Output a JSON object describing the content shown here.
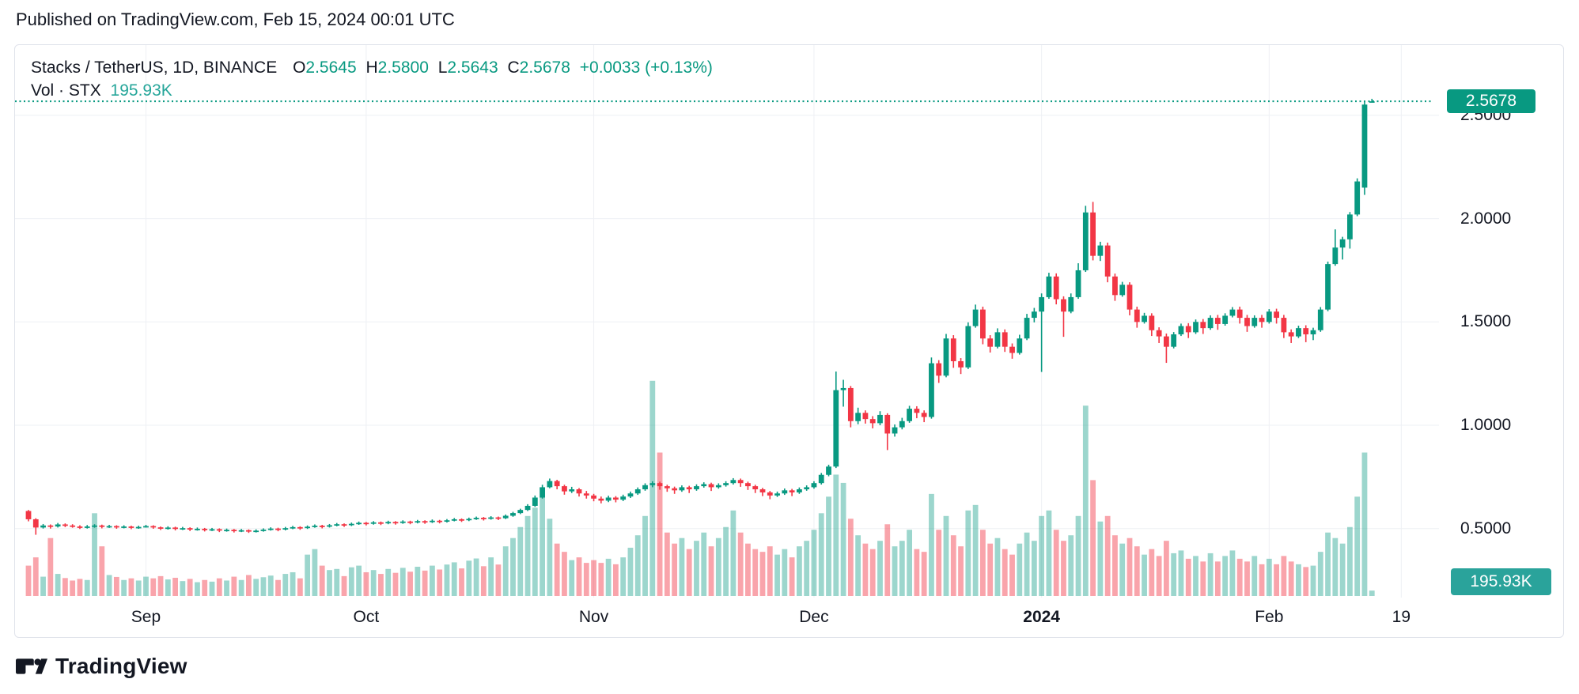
{
  "header": {
    "published_line": "Published on TradingView.com, Feb 15, 2024 00:01 UTC"
  },
  "legend": {
    "symbol_line": {
      "symbol": "Stacks / TetherUS, 1D, BINANCE",
      "o_label": "O",
      "o_value": "2.5645",
      "h_label": "H",
      "h_value": "2.5800",
      "l_label": "L",
      "l_value": "2.5643",
      "c_label": "C",
      "c_value": "2.5678",
      "change": "+0.0033 (+0.13%)"
    },
    "volume_line": {
      "label": "Vol · STX",
      "value": "195.93K"
    }
  },
  "price_axis": {
    "labels": [
      {
        "text": "2.5000",
        "price": 2.5
      },
      {
        "text": "2.0000",
        "price": 2.0
      },
      {
        "text": "1.5000",
        "price": 1.5
      },
      {
        "text": "1.0000",
        "price": 1.0
      },
      {
        "text": "0.5000",
        "price": 0.5
      }
    ],
    "price_badge": "2.5678",
    "volume_badge": "195.93K"
  },
  "time_axis": {
    "labels": [
      {
        "text": "Sep",
        "day_index": 16,
        "bold": false
      },
      {
        "text": "Oct",
        "day_index": 46,
        "bold": false
      },
      {
        "text": "Nov",
        "day_index": 77,
        "bold": false
      },
      {
        "text": "Dec",
        "day_index": 107,
        "bold": false
      },
      {
        "text": "2024",
        "day_index": 138,
        "bold": true
      },
      {
        "text": "Feb",
        "day_index": 169,
        "bold": false
      },
      {
        "text": "19",
        "day_index": 187,
        "bold": false
      }
    ]
  },
  "footer": {
    "brand": "TradingView",
    "logo": "tradingview-tv-mark"
  },
  "colors": {
    "up": "#089981",
    "down": "#f23645",
    "vol_up": "rgba(8,153,129,0.40)",
    "vol_down": "rgba(242,54,69,0.45)",
    "grid": "#eef0f4",
    "text": "#131722",
    "price_line": "#089981",
    "price_badge_bg": "#089981",
    "volume_badge_bg": "#2aa39b",
    "card_border": "#e0e3eb"
  },
  "chart_data": {
    "type": "candlestick",
    "title": "Stacks / TetherUS, 1D, BINANCE",
    "symbol": "STX/USDT",
    "interval": "1D",
    "exchange": "BINANCE",
    "last_price": 2.5678,
    "last_volume_text": "195.93K",
    "start_date": "2023-08-16",
    "end_date": "2024-02-15",
    "y_axis": {
      "min_visible": 0.35,
      "max_visible": 2.7,
      "gridlines": [
        2.5,
        2.0,
        1.5,
        1.0,
        0.5
      ]
    },
    "volume_unit": "thousand STX",
    "legend_note": "candles are [open, high, low, close, volumeK] per day starting 2023-08-16",
    "candles": [
      [
        0.585,
        0.59,
        0.535,
        0.545,
        1100
      ],
      [
        0.545,
        0.55,
        0.47,
        0.505,
        1400
      ],
      [
        0.505,
        0.522,
        0.5,
        0.515,
        700
      ],
      [
        0.515,
        0.52,
        0.5,
        0.51,
        2100
      ],
      [
        0.51,
        0.527,
        0.505,
        0.52,
        800
      ],
      [
        0.52,
        0.525,
        0.507,
        0.515,
        650
      ],
      [
        0.515,
        0.521,
        0.504,
        0.51,
        560
      ],
      [
        0.51,
        0.516,
        0.498,
        0.505,
        620
      ],
      [
        0.505,
        0.517,
        0.5,
        0.51,
        580
      ],
      [
        0.51,
        0.521,
        0.504,
        0.515,
        3000
      ],
      [
        0.515,
        0.519,
        0.501,
        0.508,
        1800
      ],
      [
        0.508,
        0.518,
        0.503,
        0.512,
        760
      ],
      [
        0.512,
        0.516,
        0.499,
        0.506,
        690
      ],
      [
        0.506,
        0.516,
        0.501,
        0.51,
        580
      ],
      [
        0.51,
        0.514,
        0.497,
        0.504,
        640
      ],
      [
        0.504,
        0.514,
        0.499,
        0.508,
        560
      ],
      [
        0.508,
        0.518,
        0.505,
        0.512,
        700
      ],
      [
        0.512,
        0.516,
        0.499,
        0.506,
        640
      ],
      [
        0.506,
        0.51,
        0.493,
        0.5,
        720
      ],
      [
        0.5,
        0.511,
        0.495,
        0.505,
        600
      ],
      [
        0.505,
        0.509,
        0.491,
        0.498,
        660
      ],
      [
        0.498,
        0.508,
        0.493,
        0.502,
        540
      ],
      [
        0.502,
        0.506,
        0.488,
        0.495,
        620
      ],
      [
        0.495,
        0.505,
        0.49,
        0.499,
        500
      ],
      [
        0.499,
        0.503,
        0.486,
        0.493,
        580
      ],
      [
        0.493,
        0.503,
        0.488,
        0.497,
        520
      ],
      [
        0.497,
        0.501,
        0.483,
        0.49,
        640
      ],
      [
        0.49,
        0.5,
        0.485,
        0.494,
        560
      ],
      [
        0.494,
        0.498,
        0.481,
        0.488,
        700
      ],
      [
        0.488,
        0.498,
        0.483,
        0.492,
        580
      ],
      [
        0.492,
        0.496,
        0.479,
        0.486,
        760
      ],
      [
        0.486,
        0.496,
        0.481,
        0.49,
        620
      ],
      [
        0.49,
        0.501,
        0.485,
        0.495,
        680
      ],
      [
        0.495,
        0.506,
        0.49,
        0.5,
        740
      ],
      [
        0.5,
        0.504,
        0.487,
        0.496,
        580
      ],
      [
        0.496,
        0.508,
        0.491,
        0.502,
        800
      ],
      [
        0.502,
        0.513,
        0.497,
        0.507,
        860
      ],
      [
        0.507,
        0.511,
        0.494,
        0.503,
        640
      ],
      [
        0.503,
        0.515,
        0.498,
        0.509,
        1500
      ],
      [
        0.509,
        0.52,
        0.504,
        0.514,
        1700
      ],
      [
        0.514,
        0.518,
        0.501,
        0.51,
        1100
      ],
      [
        0.51,
        0.522,
        0.505,
        0.516,
        940
      ],
      [
        0.516,
        0.527,
        0.511,
        0.521,
        980
      ],
      [
        0.521,
        0.525,
        0.508,
        0.517,
        720
      ],
      [
        0.517,
        0.529,
        0.512,
        0.523,
        1040
      ],
      [
        0.523,
        0.534,
        0.518,
        0.528,
        1100
      ],
      [
        0.528,
        0.532,
        0.515,
        0.524,
        860
      ],
      [
        0.524,
        0.536,
        0.519,
        0.53,
        940
      ],
      [
        0.53,
        0.534,
        0.517,
        0.526,
        800
      ],
      [
        0.526,
        0.538,
        0.521,
        0.532,
        980
      ],
      [
        0.532,
        0.536,
        0.519,
        0.528,
        840
      ],
      [
        0.528,
        0.54,
        0.523,
        0.534,
        1020
      ],
      [
        0.534,
        0.538,
        0.521,
        0.53,
        880
      ],
      [
        0.53,
        0.542,
        0.525,
        0.536,
        1060
      ],
      [
        0.536,
        0.54,
        0.523,
        0.532,
        920
      ],
      [
        0.532,
        0.544,
        0.527,
        0.538,
        1100
      ],
      [
        0.538,
        0.542,
        0.525,
        0.534,
        960
      ],
      [
        0.534,
        0.546,
        0.529,
        0.54,
        1140
      ],
      [
        0.54,
        0.551,
        0.535,
        0.545,
        1220
      ],
      [
        0.545,
        0.549,
        0.532,
        0.541,
        1000
      ],
      [
        0.541,
        0.553,
        0.536,
        0.547,
        1280
      ],
      [
        0.547,
        0.558,
        0.542,
        0.552,
        1360
      ],
      [
        0.552,
        0.556,
        0.539,
        0.548,
        1080
      ],
      [
        0.548,
        0.56,
        0.543,
        0.554,
        1400
      ],
      [
        0.554,
        0.558,
        0.541,
        0.55,
        1140
      ],
      [
        0.55,
        0.568,
        0.546,
        0.562,
        1800
      ],
      [
        0.562,
        0.581,
        0.557,
        0.575,
        2100
      ],
      [
        0.575,
        0.596,
        0.57,
        0.59,
        2500
      ],
      [
        0.59,
        0.618,
        0.585,
        0.61,
        2900
      ],
      [
        0.61,
        0.66,
        0.605,
        0.65,
        3200
      ],
      [
        0.65,
        0.712,
        0.645,
        0.7,
        3600
      ],
      [
        0.7,
        0.742,
        0.695,
        0.73,
        2800
      ],
      [
        0.73,
        0.736,
        0.69,
        0.705,
        1900
      ],
      [
        0.705,
        0.712,
        0.664,
        0.68,
        1600
      ],
      [
        0.68,
        0.702,
        0.672,
        0.69,
        1300
      ],
      [
        0.69,
        0.696,
        0.655,
        0.67,
        1400
      ],
      [
        0.67,
        0.682,
        0.645,
        0.66,
        1200
      ],
      [
        0.66,
        0.668,
        0.632,
        0.645,
        1300
      ],
      [
        0.645,
        0.655,
        0.622,
        0.635,
        1200
      ],
      [
        0.635,
        0.659,
        0.628,
        0.65,
        1350
      ],
      [
        0.65,
        0.657,
        0.627,
        0.64,
        1150
      ],
      [
        0.64,
        0.664,
        0.633,
        0.655,
        1400
      ],
      [
        0.655,
        0.679,
        0.648,
        0.67,
        1750
      ],
      [
        0.67,
        0.699,
        0.663,
        0.69,
        2200
      ],
      [
        0.69,
        0.719,
        0.683,
        0.71,
        2900
      ],
      [
        0.71,
        0.729,
        0.7,
        0.72,
        7800
      ],
      [
        0.72,
        0.727,
        0.688,
        0.705,
        5200
      ],
      [
        0.705,
        0.712,
        0.678,
        0.695,
        2300
      ],
      [
        0.695,
        0.703,
        0.668,
        0.685,
        1900
      ],
      [
        0.685,
        0.709,
        0.678,
        0.7,
        2100
      ],
      [
        0.7,
        0.707,
        0.672,
        0.69,
        1700
      ],
      [
        0.69,
        0.714,
        0.683,
        0.705,
        2000
      ],
      [
        0.705,
        0.724,
        0.698,
        0.715,
        2300
      ],
      [
        0.715,
        0.722,
        0.682,
        0.7,
        1800
      ],
      [
        0.7,
        0.719,
        0.693,
        0.71,
        2100
      ],
      [
        0.71,
        0.729,
        0.703,
        0.72,
        2500
      ],
      [
        0.72,
        0.744,
        0.713,
        0.735,
        3100
      ],
      [
        0.735,
        0.742,
        0.702,
        0.72,
        2300
      ],
      [
        0.72,
        0.727,
        0.687,
        0.705,
        1900
      ],
      [
        0.705,
        0.712,
        0.672,
        0.69,
        1700
      ],
      [
        0.69,
        0.697,
        0.657,
        0.675,
        1600
      ],
      [
        0.675,
        0.682,
        0.642,
        0.66,
        1800
      ],
      [
        0.66,
        0.679,
        0.653,
        0.67,
        1500
      ],
      [
        0.67,
        0.694,
        0.663,
        0.685,
        1700
      ],
      [
        0.685,
        0.692,
        0.657,
        0.675,
        1400
      ],
      [
        0.675,
        0.699,
        0.668,
        0.69,
        1800
      ],
      [
        0.69,
        0.709,
        0.683,
        0.7,
        2000
      ],
      [
        0.7,
        0.729,
        0.693,
        0.72,
        2400
      ],
      [
        0.72,
        0.769,
        0.713,
        0.76,
        3000
      ],
      [
        0.76,
        0.809,
        0.753,
        0.8,
        3600
      ],
      [
        0.8,
        1.26,
        0.793,
        1.17,
        4400
      ],
      [
        1.17,
        1.22,
        1.09,
        1.18,
        4100
      ],
      [
        1.18,
        1.19,
        0.99,
        1.02,
        2800
      ],
      [
        1.02,
        1.085,
        1.005,
        1.06,
        2200
      ],
      [
        1.06,
        1.072,
        1.008,
        1.03,
        1900
      ],
      [
        1.03,
        1.044,
        0.985,
        1.01,
        1700
      ],
      [
        1.01,
        1.068,
        1.0,
        1.05,
        2000
      ],
      [
        1.05,
        1.058,
        0.88,
        0.96,
        2600
      ],
      [
        0.96,
        1.004,
        0.945,
        0.99,
        1800
      ],
      [
        0.99,
        1.036,
        0.98,
        1.02,
        2000
      ],
      [
        1.02,
        1.094,
        1.012,
        1.08,
        2400
      ],
      [
        1.08,
        1.092,
        1.034,
        1.06,
        1700
      ],
      [
        1.06,
        1.072,
        1.015,
        1.04,
        1600
      ],
      [
        1.04,
        1.328,
        1.032,
        1.3,
        3700
      ],
      [
        1.3,
        1.315,
        1.205,
        1.24,
        2400
      ],
      [
        1.24,
        1.442,
        1.232,
        1.42,
        2900
      ],
      [
        1.42,
        1.436,
        1.278,
        1.31,
        2200
      ],
      [
        1.31,
        1.325,
        1.248,
        1.28,
        1800
      ],
      [
        1.28,
        1.498,
        1.272,
        1.48,
        3100
      ],
      [
        1.48,
        1.584,
        1.472,
        1.56,
        3300
      ],
      [
        1.56,
        1.574,
        1.392,
        1.42,
        2400
      ],
      [
        1.42,
        1.436,
        1.352,
        1.38,
        1900
      ],
      [
        1.38,
        1.469,
        1.372,
        1.45,
        2100
      ],
      [
        1.45,
        1.464,
        1.355,
        1.38,
        1700
      ],
      [
        1.38,
        1.396,
        1.322,
        1.35,
        1500
      ],
      [
        1.35,
        1.438,
        1.342,
        1.42,
        1900
      ],
      [
        1.42,
        1.539,
        1.412,
        1.52,
        2300
      ],
      [
        1.52,
        1.568,
        1.498,
        1.55,
        2000
      ],
      [
        1.55,
        1.638,
        1.258,
        1.62,
        2900
      ],
      [
        1.62,
        1.738,
        1.612,
        1.72,
        3100
      ],
      [
        1.72,
        1.735,
        1.585,
        1.61,
        2400
      ],
      [
        1.61,
        1.624,
        1.428,
        1.55,
        2000
      ],
      [
        1.55,
        1.638,
        1.542,
        1.62,
        2200
      ],
      [
        1.62,
        1.784,
        1.612,
        1.75,
        2900
      ],
      [
        1.75,
        2.062,
        1.742,
        2.03,
        6900
      ],
      [
        2.03,
        2.081,
        1.798,
        1.82,
        4200
      ],
      [
        1.82,
        1.888,
        1.795,
        1.87,
        2700
      ],
      [
        1.87,
        1.884,
        1.692,
        1.72,
        2900
      ],
      [
        1.72,
        1.734,
        1.602,
        1.63,
        2200
      ],
      [
        1.63,
        1.694,
        1.622,
        1.68,
        1900
      ],
      [
        1.68,
        1.692,
        1.532,
        1.56,
        2100
      ],
      [
        1.56,
        1.574,
        1.472,
        1.5,
        1800
      ],
      [
        1.5,
        1.544,
        1.492,
        1.53,
        1500
      ],
      [
        1.53,
        1.542,
        1.432,
        1.46,
        1700
      ],
      [
        1.46,
        1.474,
        1.398,
        1.43,
        1450
      ],
      [
        1.43,
        1.444,
        1.302,
        1.38,
        2000
      ],
      [
        1.38,
        1.451,
        1.372,
        1.44,
        1550
      ],
      [
        1.44,
        1.492,
        1.432,
        1.48,
        1650
      ],
      [
        1.48,
        1.494,
        1.422,
        1.45,
        1350
      ],
      [
        1.45,
        1.512,
        1.442,
        1.5,
        1450
      ],
      [
        1.5,
        1.514,
        1.442,
        1.47,
        1250
      ],
      [
        1.47,
        1.532,
        1.462,
        1.52,
        1550
      ],
      [
        1.52,
        1.534,
        1.462,
        1.49,
        1250
      ],
      [
        1.49,
        1.542,
        1.482,
        1.53,
        1450
      ],
      [
        1.53,
        1.572,
        1.522,
        1.56,
        1650
      ],
      [
        1.56,
        1.574,
        1.492,
        1.52,
        1350
      ],
      [
        1.52,
        1.534,
        1.452,
        1.48,
        1250
      ],
      [
        1.48,
        1.532,
        1.472,
        1.52,
        1450
      ],
      [
        1.52,
        1.534,
        1.472,
        1.5,
        1150
      ],
      [
        1.5,
        1.562,
        1.492,
        1.55,
        1350
      ],
      [
        1.55,
        1.564,
        1.492,
        1.52,
        1150
      ],
      [
        1.52,
        1.534,
        1.422,
        1.45,
        1450
      ],
      [
        1.45,
        1.464,
        1.398,
        1.43,
        1250
      ],
      [
        1.43,
        1.482,
        1.422,
        1.47,
        1150
      ],
      [
        1.47,
        1.484,
        1.402,
        1.44,
        1050
      ],
      [
        1.44,
        1.472,
        1.412,
        1.46,
        1100
      ],
      [
        1.46,
        1.572,
        1.452,
        1.56,
        1600
      ],
      [
        1.56,
        1.792,
        1.552,
        1.78,
        2300
      ],
      [
        1.78,
        1.948,
        1.772,
        1.86,
        2100
      ],
      [
        1.86,
        1.912,
        1.802,
        1.9,
        1900
      ],
      [
        1.9,
        2.032,
        1.855,
        2.02,
        2500
      ],
      [
        2.02,
        2.195,
        2.012,
        2.18,
        3600
      ],
      [
        2.15,
        2.565,
        2.115,
        2.552,
        5200
      ],
      [
        2.5645,
        2.58,
        2.5643,
        2.5678,
        195.93
      ]
    ]
  }
}
